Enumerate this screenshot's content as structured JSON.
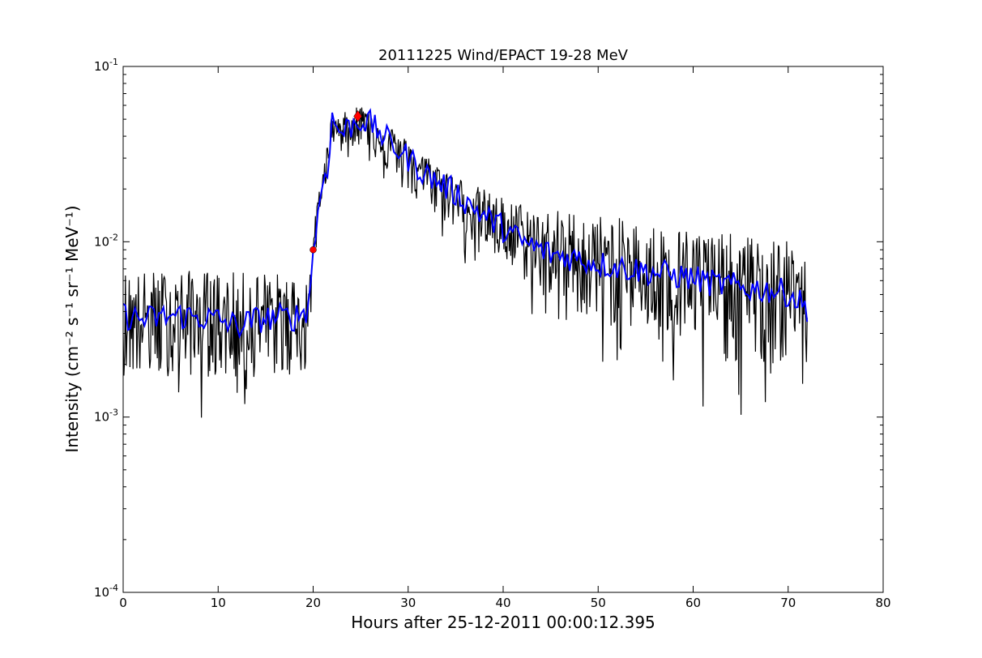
{
  "chart_data": {
    "type": "line",
    "title": "20111225 Wind/EPACT 19-28 MeV",
    "xlabel": "Hours after 25-12-2011 00:00:12.395",
    "ylabel": "Intensity (cm⁻² s⁻¹ sr⁻¹ MeV⁻¹)",
    "xlim": [
      0,
      80
    ],
    "ylim": [
      0.0001,
      0.1
    ],
    "yscale": "log",
    "grid": false,
    "legend": "none",
    "x_ticks": [
      0,
      10,
      20,
      30,
      40,
      50,
      60,
      70,
      80
    ],
    "x_tick_labels": [
      "0",
      "10",
      "20",
      "30",
      "40",
      "50",
      "60",
      "70",
      "80"
    ],
    "y_ticks": [
      0.0001,
      0.001,
      0.01,
      0.1
    ],
    "y_tick_labels": [
      {
        "base": "10",
        "exp": "-4"
      },
      {
        "base": "10",
        "exp": "-3"
      },
      {
        "base": "10",
        "exp": "-2"
      },
      {
        "base": "10",
        "exp": "-1"
      }
    ],
    "series": [
      {
        "color": "#000000",
        "style": "raw noisy line",
        "x_range": [
          0,
          72
        ],
        "envelope": {
          "x": [
            0,
            5,
            10,
            15,
            19.5,
            20,
            21,
            22,
            24,
            25,
            27,
            30,
            35,
            40,
            45,
            50,
            55,
            60,
            65,
            70,
            72
          ],
          "high": [
            0.008,
            0.008,
            0.008,
            0.008,
            0.007,
            0.012,
            0.03,
            0.055,
            0.06,
            0.065,
            0.055,
            0.04,
            0.025,
            0.02,
            0.018,
            0.017,
            0.015,
            0.014,
            0.013,
            0.012,
            0.009
          ],
          "low": [
            0.0009,
            0.0009,
            0.0009,
            0.0009,
            0.0009,
            0.005,
            0.015,
            0.03,
            0.03,
            0.03,
            0.02,
            0.012,
            0.008,
            0.005,
            0.003,
            0.0017,
            0.0017,
            0.0009,
            0.0009,
            0.0009,
            0.0017
          ]
        }
      },
      {
        "color": "#0000ff",
        "style": "smoothed line",
        "x": [
          0,
          2,
          4,
          6,
          8,
          10,
          12,
          14,
          16,
          18,
          19.5,
          20,
          20.5,
          21,
          21.5,
          22,
          22.5,
          23,
          24,
          25,
          26,
          27,
          28,
          30,
          32,
          35,
          38,
          40,
          42,
          45,
          48,
          50,
          55,
          60,
          62,
          65,
          68,
          70,
          72
        ],
        "values": [
          0.0038,
          0.0036,
          0.0037,
          0.0038,
          0.0037,
          0.0036,
          0.0033,
          0.0036,
          0.0037,
          0.0037,
          0.0042,
          0.009,
          0.014,
          0.022,
          0.027,
          0.05,
          0.045,
          0.042,
          0.046,
          0.05,
          0.047,
          0.042,
          0.037,
          0.03,
          0.024,
          0.019,
          0.014,
          0.012,
          0.01,
          0.0085,
          0.008,
          0.0075,
          0.0068,
          0.0062,
          0.0058,
          0.0055,
          0.0053,
          0.0051,
          0.0042
        ]
      }
    ],
    "markers": [
      {
        "x": 20,
        "y": 0.009,
        "color": "#ff0000",
        "shape": "circle"
      },
      {
        "x": 24.7,
        "y": 0.052,
        "color": "#ff0000",
        "shape": "diamond"
      }
    ]
  }
}
